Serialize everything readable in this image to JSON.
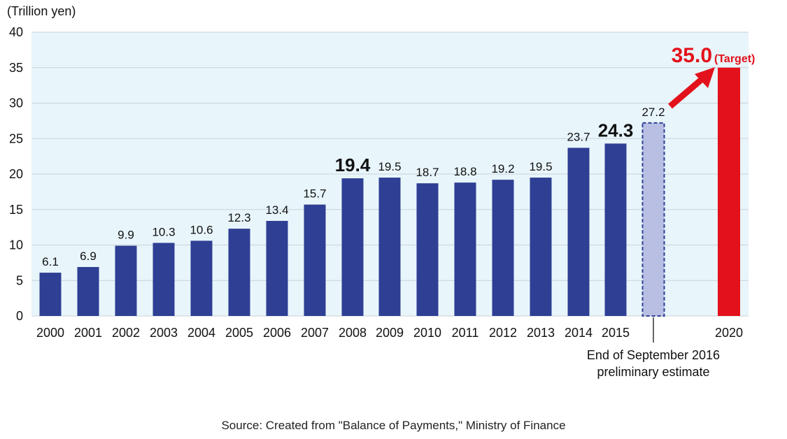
{
  "chart_data": {
    "type": "bar",
    "unit_label": "(Trillion yen)",
    "ylim": [
      0,
      40
    ],
    "y_ticks": [
      0,
      5,
      10,
      15,
      20,
      25,
      30,
      35,
      40
    ],
    "grid": true,
    "categories": [
      "2000",
      "2001",
      "2002",
      "2003",
      "2004",
      "2005",
      "2006",
      "2007",
      "2008",
      "2009",
      "2010",
      "2011",
      "2012",
      "2013",
      "2014",
      "2015",
      "",
      "2020"
    ],
    "values": [
      6.1,
      6.9,
      9.9,
      10.3,
      10.6,
      12.3,
      13.4,
      15.7,
      19.4,
      19.5,
      18.7,
      18.8,
      19.2,
      19.5,
      23.7,
      24.3,
      27.2,
      35.0
    ],
    "data_labels": [
      "6.1",
      "6.9",
      "9.9",
      "10.3",
      "10.6",
      "12.3",
      "13.4",
      "15.7",
      "19.4",
      "19.5",
      "18.7",
      "18.8",
      "19.2",
      "19.5",
      "23.7",
      "24.3",
      "27.2",
      "35.0"
    ],
    "emphasized_labels": [
      "19.4",
      "24.3"
    ],
    "bar_kinds": [
      "actual",
      "actual",
      "actual",
      "actual",
      "actual",
      "actual",
      "actual",
      "actual",
      "actual",
      "actual",
      "actual",
      "actual",
      "actual",
      "actual",
      "actual",
      "actual",
      "estimate",
      "target"
    ],
    "estimate_note": [
      "End of September 2016",
      "preliminary estimate"
    ],
    "target_suffix": "(Target)",
    "colors": {
      "actual": "#2e3f94",
      "estimate_fill": "#b8bfe3",
      "estimate_border": "#2e3f94",
      "target": "#e3111b",
      "plot_background": "#e8f5fb",
      "grid": "#c8d3d8"
    }
  },
  "source": "Source: Created from \"Balance of Payments,\" Ministry of Finance"
}
